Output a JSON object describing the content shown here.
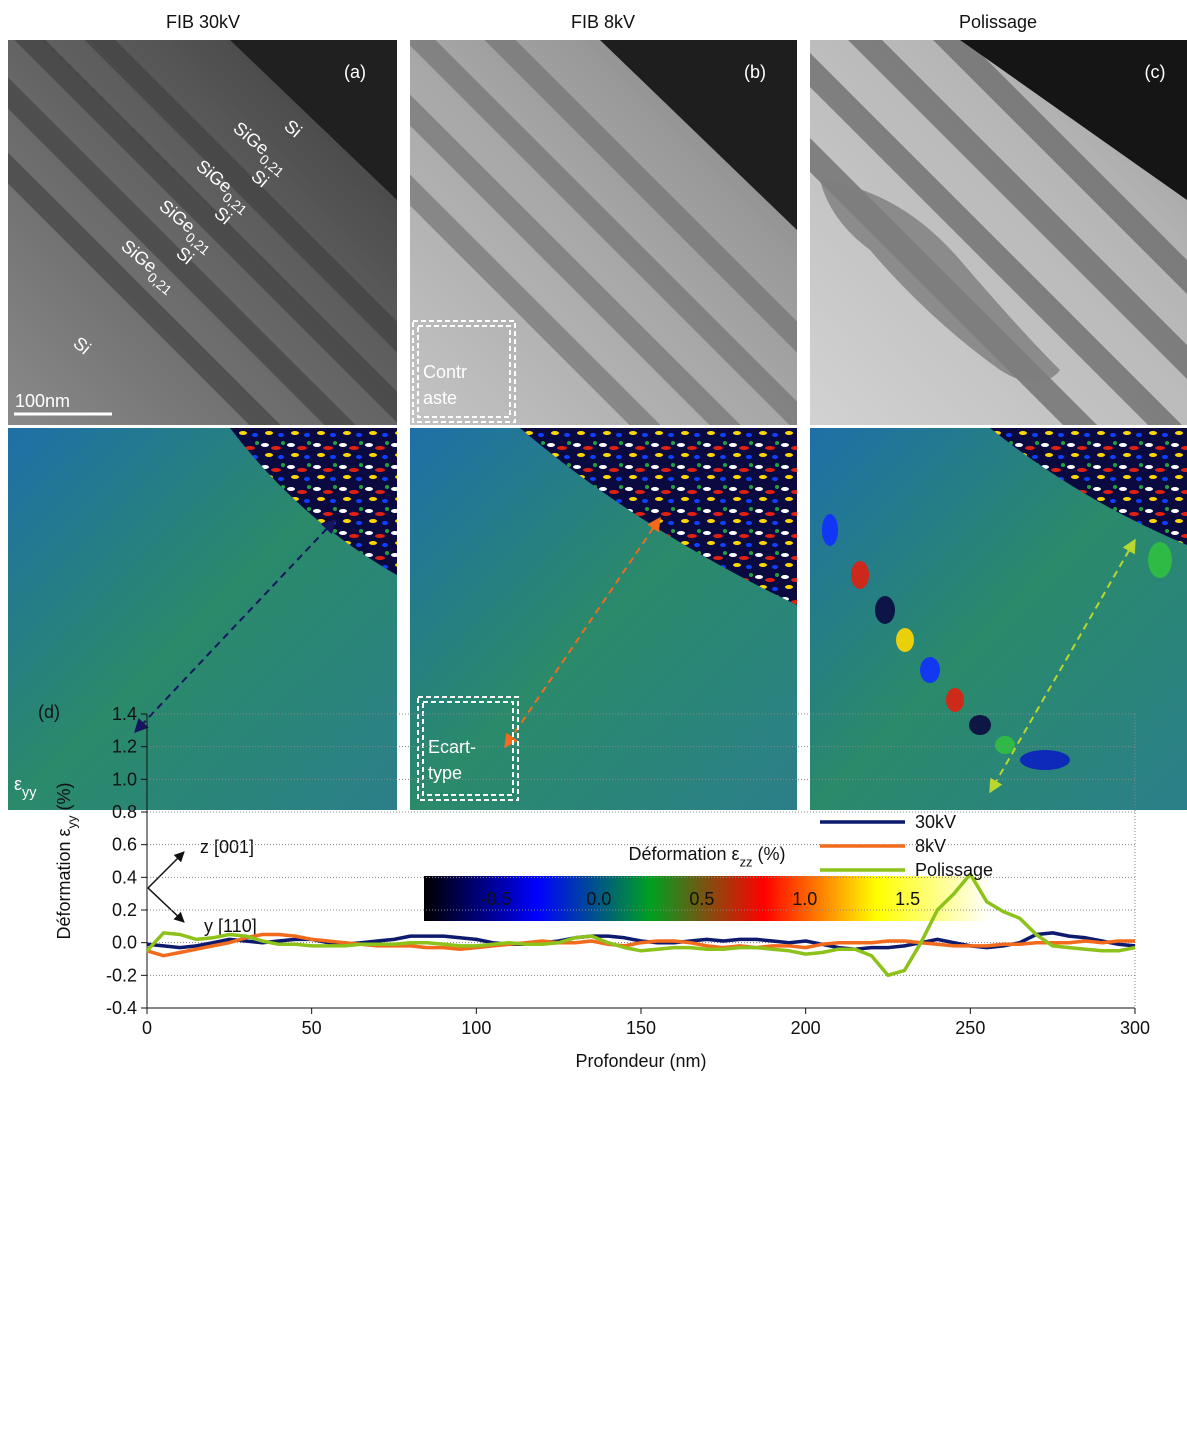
{
  "panels": [
    {
      "title": "FIB 30kV",
      "tag": "(a)",
      "layers": [
        {
          "text": "Si"
        },
        {
          "text": "SiGe",
          "sub": "0,21"
        },
        {
          "text": "Si"
        },
        {
          "text": "SiGe",
          "sub": "0,21"
        },
        {
          "text": "Si"
        },
        {
          "text": "SiGe",
          "sub": "0,21"
        },
        {
          "text": "Si"
        },
        {
          "text": "SiGe",
          "sub": "0,21"
        },
        {
          "text": "Si"
        }
      ],
      "scale_bar": "100nm",
      "map_label": {
        "text": "ε",
        "sub": "yy"
      }
    },
    {
      "title": "FIB 8kV",
      "tag": "(b)",
      "box_top": [
        "Contr",
        "aste"
      ],
      "box_bottom": [
        "Ecart-",
        "type"
      ]
    },
    {
      "title": "Polissage",
      "tag": "(c)"
    }
  ],
  "axes_indicator": {
    "z": "z [001]",
    "y": "y [110]"
  },
  "colorbar": {
    "title": {
      "text": "Déformation ε",
      "sub": "zz",
      "suffix": "(%)"
    },
    "lim": [
      -0.85,
      1.9
    ],
    "ticks": [
      -0.5,
      {
        "value": 0.0,
        "label": "0.0"
      },
      0.5,
      {
        "value": 1.0,
        "label": "1.0"
      },
      1.5
    ],
    "colors": [
      "#000000",
      "#0000ff",
      "#00a020",
      "#ff0000",
      "#ffff00",
      "#ffffff"
    ]
  },
  "chart_data": {
    "type": "line",
    "panel_label": "(d)",
    "xlabel": "Profondeur (nm)",
    "ylabel": {
      "text": "Déformation ε",
      "sub": "yy",
      "suffix": "(%)"
    },
    "x": [
      0,
      5,
      10,
      15,
      20,
      25,
      30,
      35,
      40,
      45,
      50,
      55,
      60,
      65,
      70,
      75,
      80,
      85,
      90,
      95,
      100,
      105,
      110,
      115,
      120,
      125,
      130,
      135,
      140,
      145,
      150,
      155,
      160,
      165,
      170,
      175,
      180,
      185,
      190,
      195,
      200,
      205,
      210,
      215,
      220,
      225,
      230,
      235,
      240,
      245,
      250,
      255,
      260,
      265,
      270,
      275,
      280,
      285,
      290,
      295,
      300
    ],
    "series": [
      {
        "name": "30kV",
        "color": "#0d1a6e",
        "values": [
          -0.01,
          -0.02,
          -0.03,
          -0.02,
          0.0,
          0.02,
          0.01,
          0.0,
          0.01,
          0.02,
          0.02,
          0.0,
          -0.01,
          0.0,
          0.01,
          0.02,
          0.04,
          0.04,
          0.04,
          0.03,
          0.02,
          0.0,
          -0.01,
          -0.01,
          0.0,
          0.01,
          0.03,
          0.04,
          0.04,
          0.03,
          0.01,
          0.0,
          0.0,
          0.01,
          0.02,
          0.01,
          0.02,
          0.02,
          0.01,
          0.0,
          0.01,
          -0.01,
          -0.03,
          -0.04,
          -0.03,
          -0.03,
          -0.02,
          0.0,
          0.02,
          0.0,
          -0.02,
          -0.03,
          -0.02,
          0.0,
          0.05,
          0.06,
          0.04,
          0.03,
          0.01,
          -0.01,
          -0.02
        ]
      },
      {
        "name": "8kV",
        "color": "#f26b1d",
        "values": [
          -0.05,
          -0.08,
          -0.06,
          -0.04,
          -0.02,
          0.0,
          0.03,
          0.05,
          0.05,
          0.04,
          0.02,
          0.01,
          0.0,
          -0.01,
          -0.02,
          -0.02,
          -0.02,
          -0.03,
          -0.03,
          -0.04,
          -0.03,
          -0.02,
          -0.01,
          0.0,
          0.01,
          0.0,
          0.0,
          0.01,
          -0.01,
          -0.02,
          0.0,
          0.01,
          0.01,
          0.0,
          -0.02,
          -0.03,
          -0.02,
          -0.03,
          -0.02,
          -0.02,
          -0.03,
          -0.01,
          0.0,
          0.0,
          0.0,
          0.01,
          0.01,
          0.0,
          -0.01,
          -0.02,
          -0.02,
          -0.02,
          -0.01,
          -0.01,
          0.0,
          0.0,
          0.0,
          0.01,
          0.0,
          0.01,
          0.01
        ]
      },
      {
        "name": "Polissage",
        "color": "#8cc21a",
        "values": [
          -0.05,
          0.06,
          0.05,
          0.02,
          0.03,
          0.05,
          0.04,
          0.01,
          -0.01,
          -0.01,
          -0.02,
          -0.02,
          -0.02,
          -0.01,
          -0.01,
          -0.01,
          0.0,
          0.0,
          -0.01,
          -0.02,
          -0.02,
          -0.01,
          0.0,
          -0.01,
          -0.01,
          0.0,
          0.03,
          0.04,
          0.0,
          -0.03,
          -0.05,
          -0.04,
          -0.03,
          -0.03,
          -0.04,
          -0.04,
          -0.03,
          -0.03,
          -0.04,
          -0.05,
          -0.07,
          -0.06,
          -0.04,
          -0.04,
          -0.08,
          -0.2,
          -0.17,
          0.0,
          0.2,
          0.3,
          0.42,
          0.25,
          0.19,
          0.15,
          0.05,
          -0.02,
          -0.03,
          -0.04,
          -0.05,
          -0.05,
          -0.03
        ]
      }
    ],
    "xlim": [
      0,
      300
    ],
    "xticks": [
      0,
      50,
      100,
      150,
      200,
      250,
      300
    ],
    "ylim": [
      -0.4,
      1.4
    ],
    "yticks": [
      -0.4,
      -0.2,
      {
        "value": 0.0,
        "label": "0.0"
      },
      0.2,
      0.4,
      0.6,
      0.8,
      {
        "value": 1.0,
        "label": "1.0"
      },
      1.2,
      1.4
    ],
    "grid": "y",
    "legend": "upper right"
  }
}
